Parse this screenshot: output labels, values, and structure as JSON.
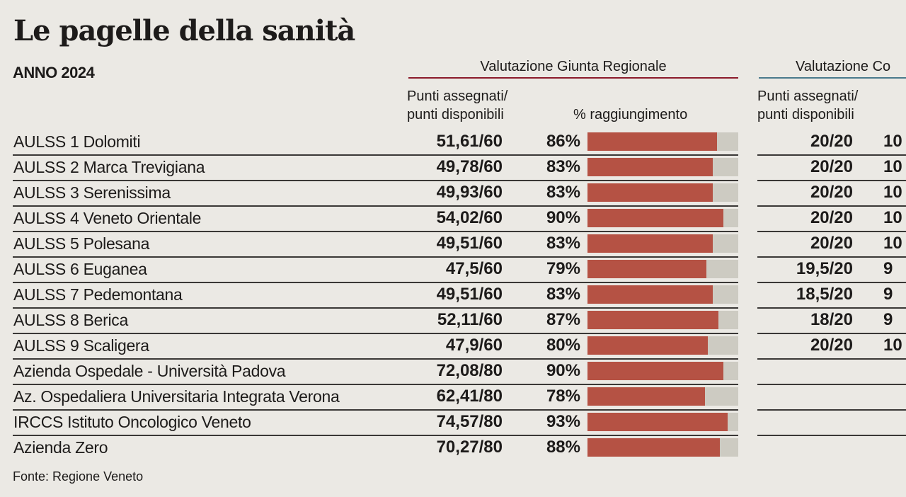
{
  "title": "Le pagelle della sanità",
  "subtitle": "ANNO 2024",
  "source": "Fonte: Regione Veneto",
  "colors": {
    "bar": "#b55244",
    "bar_track": "#cdcbc2",
    "group1_rule": "#8b1a2b",
    "group2_rule": "#4a7a8c",
    "background": "#ebe9e4"
  },
  "chart_data": {
    "type": "table",
    "groups": [
      {
        "label": "Valutazione Giunta Regionale",
        "col_points": "Punti assegnati/\npunti disponibili",
        "col_points_l1": "Punti assegnati/",
        "col_points_l2": "punti disponibili",
        "col_pct": "% raggiungimento"
      },
      {
        "label": "Valutazione Co",
        "col_points_l1": "Punti assegnati/",
        "col_points_l2": "punti disponibili"
      }
    ],
    "rows": [
      {
        "name": "AULSS 1 Dolomiti",
        "score": "51,61/60",
        "pct_label": "86%",
        "pct": 86,
        "score2": "20/20",
        "pct2": "10"
      },
      {
        "name": "AULSS 2 Marca Trevigiana",
        "score": "49,78/60",
        "pct_label": "83%",
        "pct": 83,
        "score2": "20/20",
        "pct2": "10"
      },
      {
        "name": "AULSS 3 Serenissima",
        "score": "49,93/60",
        "pct_label": "83%",
        "pct": 83,
        "score2": "20/20",
        "pct2": "10"
      },
      {
        "name": "AULSS 4 Veneto Orientale",
        "score": "54,02/60",
        "pct_label": "90%",
        "pct": 90,
        "score2": "20/20",
        "pct2": "10"
      },
      {
        "name": "AULSS 5 Polesana",
        "score": "49,51/60",
        "pct_label": "83%",
        "pct": 83,
        "score2": "20/20",
        "pct2": "10"
      },
      {
        "name": "AULSS 6 Euganea",
        "score": "47,5/60",
        "pct_label": "79%",
        "pct": 79,
        "score2": "19,5/20",
        "pct2": "9"
      },
      {
        "name": "AULSS 7 Pedemontana",
        "score": "49,51/60",
        "pct_label": "83%",
        "pct": 83,
        "score2": "18,5/20",
        "pct2": "9"
      },
      {
        "name": "AULSS 8 Berica",
        "score": "52,11/60",
        "pct_label": "87%",
        "pct": 87,
        "score2": "18/20",
        "pct2": "9"
      },
      {
        "name": "AULSS 9 Scaligera",
        "score": "47,9/60",
        "pct_label": "80%",
        "pct": 80,
        "score2": "20/20",
        "pct2": "10"
      },
      {
        "name": "Azienda Ospedale - Università Padova",
        "score": "72,08/80",
        "pct_label": "90%",
        "pct": 90,
        "score2": "",
        "pct2": ""
      },
      {
        "name": "Az. Ospedaliera Universitaria Integrata Verona",
        "score": "62,41/80",
        "pct_label": "78%",
        "pct": 78,
        "score2": "",
        "pct2": ""
      },
      {
        "name": "IRCCS Istituto Oncologico Veneto",
        "score": "74,57/80",
        "pct_label": "93%",
        "pct": 93,
        "score2": "",
        "pct2": ""
      },
      {
        "name": "Azienda Zero",
        "score": "70,27/80",
        "pct_label": "88%",
        "pct": 88,
        "score2": "",
        "pct2": ""
      }
    ],
    "pct_range": [
      0,
      100
    ]
  }
}
